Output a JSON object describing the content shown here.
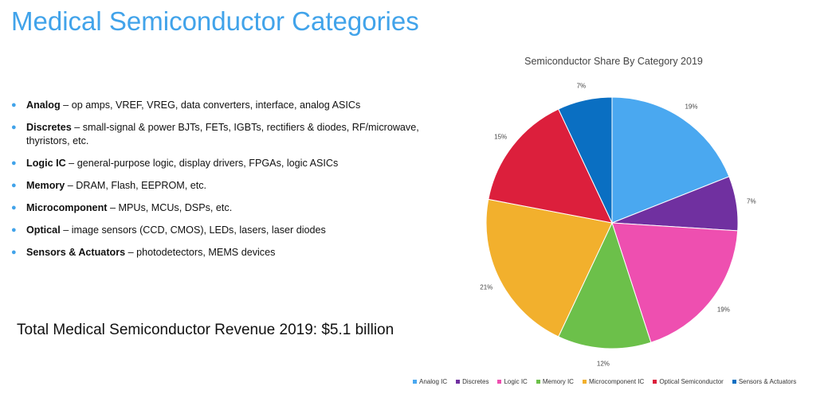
{
  "page": {
    "title": "Medical Semiconductor Categories"
  },
  "bullets": [
    {
      "term": "Analog",
      "desc": " – op amps, VREF, VREG, data converters, interface, analog ASICs"
    },
    {
      "term": "Discretes",
      "desc": " – small-signal & power BJTs, FETs, IGBTs, rectifiers & diodes, RF/microwave, thyristors, etc."
    },
    {
      "term": "Logic IC",
      "desc": " – general-purpose logic, display drivers, FPGAs, logic ASICs"
    },
    {
      "term": "Memory",
      "desc": " – DRAM, Flash, EEPROM, etc."
    },
    {
      "term": "Microcomponent",
      "desc": " – MPUs, MCUs, DSPs, etc."
    },
    {
      "term": "Optical",
      "desc": " – image sensors (CCD, CMOS), LEDs, lasers, laser diodes"
    },
    {
      "term": "Sensors & Actuators",
      "desc": " – photodetectors, MEMS devices"
    }
  ],
  "total": "Total Medical Semiconductor Revenue 2019: $5.1 billion",
  "chart_data": {
    "type": "pie",
    "title": "Semiconductor Share By Category 2019",
    "categories": [
      "Analog IC",
      "Discretes",
      "Logic IC",
      "Memory IC",
      "Microcomponent IC",
      "Optical Semiconductor",
      "Sensors & Actuators"
    ],
    "values": [
      19,
      7,
      19,
      12,
      21,
      15,
      7
    ],
    "labels": [
      "19%",
      "7%",
      "19%",
      "12%",
      "21%",
      "15%",
      "7%"
    ],
    "colors": [
      "#4aa8f0",
      "#7030a0",
      "#ee4fb0",
      "#6cc04a",
      "#f2b02d",
      "#dc1f3c",
      "#0a6fc2"
    ],
    "legend_position": "bottom"
  }
}
